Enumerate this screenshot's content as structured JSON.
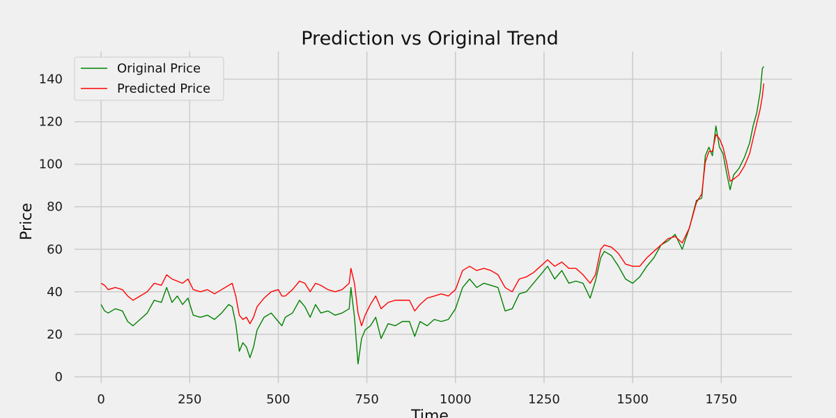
{
  "chart_data": {
    "type": "line",
    "title": "Prediction vs Original Trend",
    "xlabel": "Time",
    "ylabel": "Price",
    "xlim": [
      -75,
      1950
    ],
    "ylim": [
      -3,
      153
    ],
    "xticks": [
      0,
      250,
      500,
      750,
      1000,
      1250,
      1500,
      1750
    ],
    "yticks": [
      0,
      20,
      40,
      60,
      80,
      100,
      120,
      140
    ],
    "grid": true,
    "legend": "top-left",
    "series": [
      {
        "name": "Original Price",
        "color": "#008000",
        "x": [
          0,
          10,
          20,
          40,
          60,
          75,
          90,
          110,
          130,
          150,
          170,
          185,
          200,
          215,
          230,
          245,
          260,
          280,
          300,
          320,
          340,
          360,
          370,
          380,
          390,
          400,
          410,
          420,
          430,
          440,
          460,
          480,
          500,
          510,
          520,
          540,
          560,
          575,
          590,
          605,
          620,
          640,
          660,
          680,
          700,
          705,
          715,
          725,
          735,
          745,
          760,
          775,
          790,
          810,
          830,
          850,
          870,
          885,
          900,
          920,
          940,
          960,
          980,
          1000,
          1020,
          1040,
          1060,
          1080,
          1100,
          1120,
          1140,
          1160,
          1180,
          1200,
          1220,
          1240,
          1260,
          1280,
          1300,
          1320,
          1340,
          1360,
          1380,
          1395,
          1410,
          1420,
          1440,
          1460,
          1480,
          1500,
          1520,
          1540,
          1560,
          1580,
          1600,
          1620,
          1640,
          1660,
          1680,
          1695,
          1705,
          1715,
          1725,
          1735,
          1745,
          1755,
          1765,
          1775,
          1785,
          1800,
          1815,
          1830,
          1840,
          1850,
          1860,
          1866,
          1870
        ],
        "values": [
          34,
          31,
          30,
          32,
          31,
          26,
          24,
          27,
          30,
          36,
          35,
          42,
          35,
          38,
          34,
          37,
          29,
          28,
          29,
          27,
          30,
          34,
          33,
          25,
          12,
          16,
          14,
          9,
          14,
          22,
          28,
          30,
          26,
          24,
          28,
          30,
          36,
          33,
          28,
          34,
          30,
          31,
          29,
          30,
          32,
          42,
          28,
          6,
          18,
          22,
          24,
          28,
          18,
          25,
          24,
          26,
          26,
          19,
          26,
          24,
          27,
          26,
          27,
          32,
          42,
          46,
          42,
          44,
          43,
          42,
          31,
          32,
          39,
          40,
          44,
          48,
          52,
          46,
          50,
          44,
          45,
          44,
          37,
          45,
          56,
          59,
          57,
          52,
          46,
          44,
          47,
          52,
          56,
          62,
          64,
          67,
          60,
          70,
          83,
          84,
          104,
          108,
          104,
          118,
          108,
          105,
          96,
          88,
          95,
          98,
          103,
          110,
          118,
          124,
          134,
          145,
          146
        ]
      },
      {
        "name": "Predicted Price",
        "color": "#ff0000",
        "x": [
          0,
          10,
          20,
          40,
          60,
          75,
          90,
          110,
          130,
          150,
          170,
          185,
          200,
          215,
          230,
          245,
          260,
          280,
          300,
          320,
          340,
          360,
          370,
          380,
          390,
          400,
          410,
          420,
          430,
          440,
          460,
          480,
          500,
          510,
          520,
          540,
          560,
          575,
          590,
          605,
          620,
          640,
          660,
          680,
          700,
          705,
          715,
          725,
          735,
          745,
          760,
          775,
          790,
          810,
          830,
          850,
          870,
          885,
          900,
          920,
          940,
          960,
          980,
          1000,
          1020,
          1040,
          1060,
          1080,
          1100,
          1120,
          1140,
          1160,
          1180,
          1200,
          1220,
          1240,
          1260,
          1280,
          1300,
          1320,
          1340,
          1360,
          1380,
          1395,
          1410,
          1420,
          1440,
          1460,
          1480,
          1500,
          1520,
          1540,
          1560,
          1580,
          1600,
          1620,
          1640,
          1660,
          1680,
          1695,
          1705,
          1715,
          1725,
          1735,
          1745,
          1755,
          1765,
          1775,
          1785,
          1800,
          1815,
          1830,
          1840,
          1850,
          1860,
          1866,
          1870
        ],
        "values": [
          44,
          43,
          41,
          42,
          41,
          38,
          36,
          38,
          40,
          44,
          43,
          48,
          46,
          45,
          44,
          46,
          41,
          40,
          41,
          39,
          41,
          43,
          44,
          38,
          29,
          27,
          28,
          25,
          28,
          33,
          37,
          40,
          41,
          38,
          38,
          41,
          45,
          44,
          40,
          44,
          43,
          41,
          40,
          41,
          44,
          51,
          44,
          30,
          24,
          29,
          34,
          38,
          32,
          35,
          36,
          36,
          36,
          31,
          34,
          37,
          38,
          39,
          38,
          41,
          50,
          52,
          50,
          51,
          50,
          48,
          42,
          40,
          46,
          47,
          49,
          52,
          55,
          52,
          54,
          51,
          51,
          48,
          44,
          48,
          60,
          62,
          61,
          58,
          53,
          52,
          52,
          56,
          59,
          62,
          65,
          66,
          63,
          70,
          82,
          86,
          101,
          106,
          106,
          114,
          112,
          108,
          101,
          92,
          93,
          95,
          99,
          105,
          112,
          119,
          126,
          132,
          138
        ]
      }
    ]
  }
}
